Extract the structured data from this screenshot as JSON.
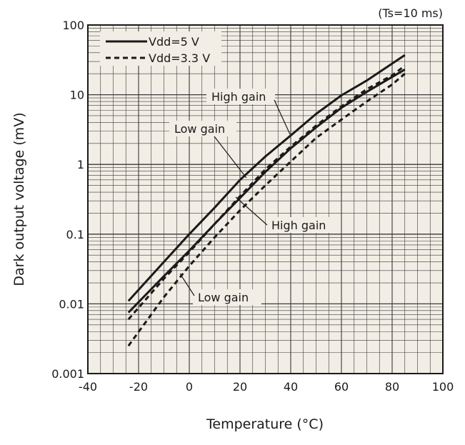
{
  "chart_data": {
    "type": "line",
    "note": "(Ts=10 ms)",
    "xlabel": "Temperature (°C)",
    "ylabel": "Dark output voltage (mV)",
    "xlim": [
      -40,
      100
    ],
    "ylim": [
      0.001,
      100
    ],
    "yscale": "log",
    "grid": true,
    "x_ticks": [
      "-40",
      "-20",
      "0",
      "20",
      "40",
      "60",
      "80",
      "100"
    ],
    "y_ticks": [
      "0.001",
      "0.01",
      "0.1",
      "1",
      "10",
      "100"
    ],
    "legend": {
      "placement": "top-left",
      "entries": [
        {
          "label": "Vdd=5 V",
          "style": "solid"
        },
        {
          "label": "Vdd=3.3 V",
          "style": "dashed"
        }
      ]
    },
    "series": [
      {
        "vdd": "Vdd=5 V",
        "gain": "High gain",
        "style": "solid",
        "x": [
          -24,
          -10,
          0,
          10,
          20,
          30,
          40,
          50,
          60,
          70,
          80,
          85
        ],
        "y": [
          0.011,
          0.04,
          0.1,
          0.24,
          0.6,
          1.3,
          2.6,
          5.3,
          9.8,
          16,
          28,
          37
        ]
      },
      {
        "vdd": "Vdd=5 V",
        "gain": "Low gain",
        "style": "solid",
        "x": [
          -24,
          -10,
          0,
          10,
          20,
          30,
          40,
          50,
          60,
          70,
          80,
          85
        ],
        "y": [
          0.0075,
          0.025,
          0.058,
          0.14,
          0.33,
          0.78,
          1.7,
          3.4,
          6.5,
          11,
          18,
          23
        ]
      },
      {
        "vdd": "Vdd=3.3 V",
        "gain": "High gain",
        "style": "dashed",
        "x": [
          -24,
          -10,
          0,
          10,
          20,
          30,
          40,
          50,
          60,
          70,
          80,
          85
        ],
        "y": [
          0.006,
          0.023,
          0.055,
          0.14,
          0.35,
          0.85,
          1.8,
          3.6,
          6.8,
          12,
          19,
          26
        ]
      },
      {
        "vdd": "Vdd=3.3 V",
        "gain": "Low gain",
        "style": "dashed",
        "x": [
          -24,
          -10,
          0,
          10,
          20,
          30,
          40,
          50,
          60,
          70,
          80,
          85
        ],
        "y": [
          0.0025,
          0.0125,
          0.035,
          0.09,
          0.22,
          0.5,
          1.1,
          2.4,
          4.4,
          8,
          14,
          20
        ]
      }
    ],
    "annotations": [
      {
        "text": "High gain",
        "points_to": "Vdd=5 V High gain"
      },
      {
        "text": "Low gain",
        "points_to": "Vdd=5 V Low gain"
      },
      {
        "text": "High gain",
        "points_to": "Vdd=3.3 V High gain"
      },
      {
        "text": "Low gain",
        "points_to": "Vdd=3.3 V Low gain"
      }
    ],
    "colors": {
      "background": "#f2eee5",
      "line": "#1a1a1a",
      "grid": "#3a3a3a"
    }
  }
}
